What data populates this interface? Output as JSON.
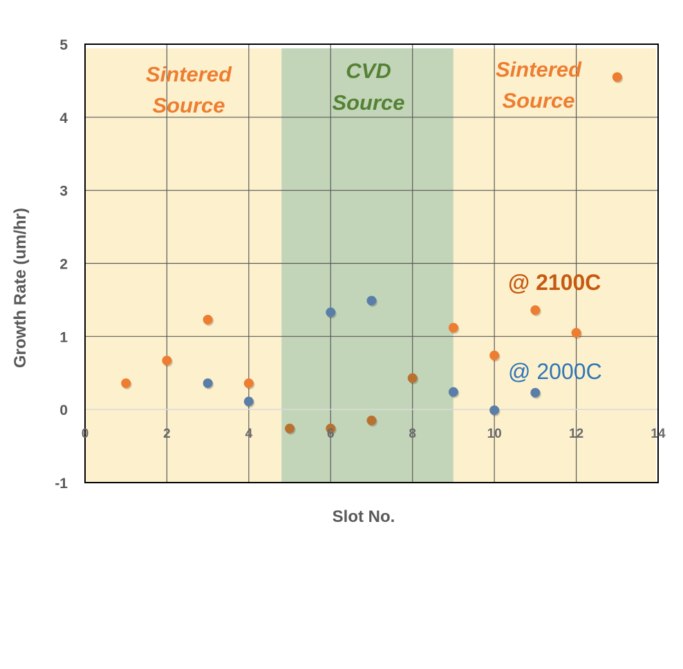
{
  "chart_data": {
    "type": "scatter",
    "xlabel": "Slot No.",
    "ylabel": "Growth Rate (um/hr)",
    "xlim": [
      0,
      14
    ],
    "ylim": [
      -1,
      5
    ],
    "x_ticks": [
      "0",
      "2",
      "4",
      "6",
      "8",
      "10",
      "12",
      "14"
    ],
    "y_ticks": [
      "-1",
      "0",
      "1",
      "2",
      "3",
      "4",
      "5"
    ],
    "grid": true,
    "regions": [
      {
        "label_line1": "Sintered",
        "label_line2": "Source",
        "x_start": 0,
        "x_end": 4.8,
        "color": "#fdf1cd",
        "text_color": "#ed7d31"
      },
      {
        "label_line1": "CVD",
        "label_line2": "Source",
        "x_start": 4.8,
        "x_end": 9.0,
        "color": "#c3d5b8",
        "text_color": "#548235"
      },
      {
        "label_line1": "Sintered",
        "label_line2": "Source",
        "x_start": 9.0,
        "x_end": 13.95,
        "color": "#fdf1cd",
        "text_color": "#ed7d31"
      }
    ],
    "series": [
      {
        "name": "@ 2100C",
        "color": "#ed7d31",
        "label_color": "#c55a11",
        "x": [
          1,
          2,
          3,
          4,
          5,
          6,
          7,
          8,
          9,
          10,
          11,
          12,
          13
        ],
        "y": [
          0.36,
          0.67,
          1.23,
          0.36,
          -0.26,
          -0.26,
          -0.15,
          0.43,
          1.12,
          0.74,
          1.36,
          1.05,
          4.55
        ]
      },
      {
        "name": "@ 2000C",
        "color": "#5a7ea8",
        "label_color": "#2e75b6",
        "x": [
          3,
          4,
          6,
          7,
          9,
          10,
          11
        ],
        "y": [
          0.36,
          0.11,
          1.33,
          1.49,
          0.24,
          -0.01,
          0.23
        ]
      }
    ]
  }
}
